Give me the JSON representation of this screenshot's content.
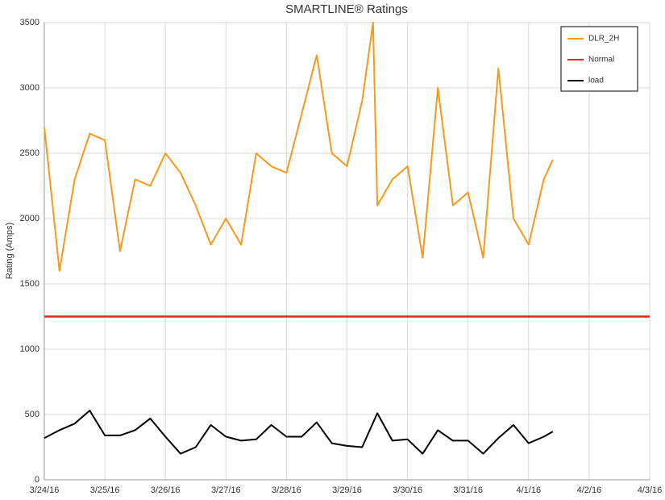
{
  "chart_data": {
    "type": "line",
    "title": "SMARTLINE® Ratings",
    "y_label": "Rating (Amps)",
    "xlim": [
      0,
      10
    ],
    "xticks": [
      {
        "value": 0,
        "label": "3/24/16"
      },
      {
        "value": 1,
        "label": "3/25/16"
      },
      {
        "value": 2,
        "label": "3/26/16"
      },
      {
        "value": 3,
        "label": "3/27/16"
      },
      {
        "value": 4,
        "label": "3/28/16"
      },
      {
        "value": 5,
        "label": "3/29/16"
      },
      {
        "value": 6,
        "label": "3/30/16"
      },
      {
        "value": 7,
        "label": "3/31/16"
      },
      {
        "value": 8,
        "label": "4/1/16"
      },
      {
        "value": 9,
        "label": "4/2/16"
      },
      {
        "value": 10,
        "label": "4/3/16"
      }
    ],
    "ylim": [
      0,
      3500
    ],
    "yticks": [
      0,
      500,
      1000,
      1500,
      2000,
      2500,
      3000,
      3500
    ],
    "grid": true,
    "legend": "top-right",
    "series": [
      {
        "name": "DLR_2H",
        "color": "#f7991c",
        "x": [
          0,
          0.25,
          0.5,
          0.75,
          1,
          1.25,
          1.5,
          1.75,
          2,
          2.25,
          2.5,
          2.75,
          3,
          3.25,
          3.5,
          3.75,
          4,
          4.25,
          4.5,
          4.75,
          5,
          5.25,
          5.43,
          5.5,
          5.75,
          6,
          6.25,
          6.5,
          6.75,
          7,
          7.25,
          7.5,
          7.75,
          8,
          8.25,
          8.4
        ],
        "values": [
          2700,
          1600,
          2300,
          2650,
          2600,
          1750,
          2300,
          2250,
          2500,
          2350,
          2100,
          1800,
          2000,
          1800,
          2500,
          2400,
          2350,
          2800,
          3250,
          2500,
          2400,
          2900,
          3500,
          2100,
          2300,
          2400,
          1700,
          3000,
          2100,
          2200,
          1700,
          3150,
          2000,
          1800,
          2300,
          2450
        ]
      },
      {
        "name": "Normal",
        "color": "#e8251d",
        "x": [
          0,
          10
        ],
        "values": [
          1250,
          1250
        ]
      },
      {
        "name": "load",
        "color": "#000000",
        "x": [
          0,
          0.25,
          0.5,
          0.75,
          1,
          1.25,
          1.5,
          1.75,
          2,
          2.25,
          2.5,
          2.75,
          3,
          3.25,
          3.5,
          3.75,
          4,
          4.25,
          4.5,
          4.75,
          5,
          5.25,
          5.5,
          5.75,
          6,
          6.25,
          6.5,
          6.75,
          7,
          7.25,
          7.5,
          7.75,
          8,
          8.25,
          8.4
        ],
        "values": [
          320,
          380,
          430,
          530,
          340,
          340,
          380,
          470,
          330,
          200,
          250,
          420,
          330,
          300,
          310,
          420,
          330,
          330,
          440,
          280,
          260,
          250,
          510,
          300,
          310,
          200,
          380,
          300,
          300,
          200,
          320,
          420,
          280,
          330,
          370
        ]
      }
    ]
  }
}
